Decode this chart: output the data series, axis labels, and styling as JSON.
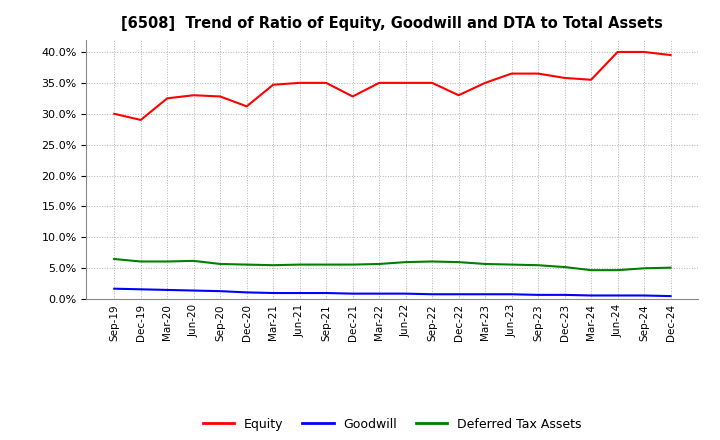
{
  "title": "[6508]  Trend of Ratio of Equity, Goodwill and DTA to Total Assets",
  "x_labels": [
    "Sep-19",
    "Dec-19",
    "Mar-20",
    "Jun-20",
    "Sep-20",
    "Dec-20",
    "Mar-21",
    "Jun-21",
    "Sep-21",
    "Dec-21",
    "Mar-22",
    "Jun-22",
    "Sep-22",
    "Dec-22",
    "Mar-23",
    "Jun-23",
    "Sep-23",
    "Dec-23",
    "Mar-24",
    "Jun-24",
    "Sep-24",
    "Dec-24"
  ],
  "equity": [
    30.0,
    29.0,
    32.5,
    33.0,
    32.8,
    31.2,
    34.7,
    35.0,
    35.0,
    32.8,
    35.0,
    35.0,
    35.0,
    33.0,
    35.0,
    36.5,
    36.5,
    35.8,
    35.5,
    40.0,
    40.0,
    39.5
  ],
  "goodwill": [
    1.7,
    1.6,
    1.5,
    1.4,
    1.3,
    1.1,
    1.0,
    1.0,
    1.0,
    0.9,
    0.9,
    0.9,
    0.8,
    0.8,
    0.8,
    0.8,
    0.7,
    0.7,
    0.6,
    0.6,
    0.6,
    0.5
  ],
  "dta": [
    6.5,
    6.1,
    6.1,
    6.2,
    5.7,
    5.6,
    5.5,
    5.6,
    5.6,
    5.6,
    5.7,
    6.0,
    6.1,
    6.0,
    5.7,
    5.6,
    5.5,
    5.2,
    4.7,
    4.7,
    5.0,
    5.1
  ],
  "equity_color": "#ff0000",
  "goodwill_color": "#0000ff",
  "dta_color": "#008000",
  "ylim": [
    0,
    42
  ],
  "yticks": [
    0.0,
    5.0,
    10.0,
    15.0,
    20.0,
    25.0,
    30.0,
    35.0,
    40.0
  ],
  "background_color": "#ffffff",
  "grid_color": "#b0b0b0",
  "legend_labels": [
    "Equity",
    "Goodwill",
    "Deferred Tax Assets"
  ]
}
